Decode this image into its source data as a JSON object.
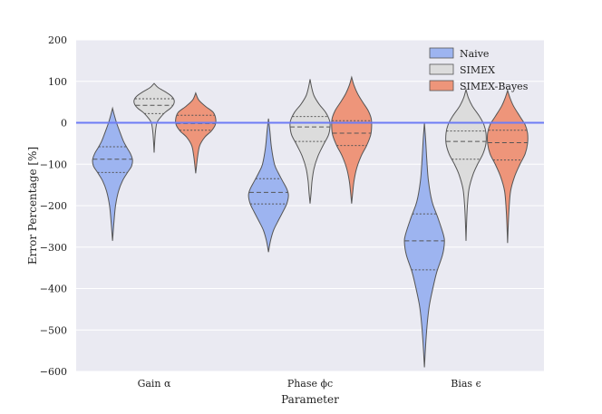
{
  "chart_data": {
    "type": "violin",
    "xlabel": "Parameter",
    "ylabel": "Error Percentage [%]",
    "ylim": [
      -600,
      200
    ],
    "yticks": [
      200,
      100,
      0,
      -100,
      -200,
      -300,
      -400,
      -500,
      -600
    ],
    "ytick_labels": [
      "200",
      "100",
      "0",
      "−100",
      "−200",
      "−300",
      "−400",
      "−500",
      "−600"
    ],
    "categories": [
      "Gain α",
      "Phase ϕc",
      "Bias ϵ"
    ],
    "reference_line": 0,
    "legend_position": "top-right",
    "series": [
      {
        "name": "Naive",
        "color": "#9db4f0",
        "violins": [
          {
            "min": -285,
            "max": 35,
            "q1": -120,
            "median": -88,
            "q3": -58,
            "profile": [
              [
                35,
                0.0
              ],
              [
                20,
                0.08
              ],
              [
                0,
                0.2
              ],
              [
                -20,
                0.35
              ],
              [
                -45,
                0.55
              ],
              [
                -60,
                0.72
              ],
              [
                -75,
                0.9
              ],
              [
                -90,
                1.0
              ],
              [
                -105,
                0.95
              ],
              [
                -120,
                0.75
              ],
              [
                -140,
                0.5
              ],
              [
                -165,
                0.3
              ],
              [
                -200,
                0.15
              ],
              [
                -240,
                0.07
              ],
              [
                -285,
                0.0
              ]
            ]
          },
          {
            "min": -312,
            "max": 10,
            "q1": -196,
            "median": -168,
            "q3": -135,
            "profile": [
              [
                10,
                0.0
              ],
              [
                -20,
                0.07
              ],
              [
                -60,
                0.15
              ],
              [
                -100,
                0.3
              ],
              [
                -120,
                0.48
              ],
              [
                -140,
                0.7
              ],
              [
                -160,
                0.92
              ],
              [
                -175,
                1.0
              ],
              [
                -195,
                0.92
              ],
              [
                -215,
                0.72
              ],
              [
                -240,
                0.45
              ],
              [
                -260,
                0.25
              ],
              [
                -285,
                0.1
              ],
              [
                -312,
                0.0
              ]
            ]
          },
          {
            "min": -590,
            "max": 0,
            "q1": -355,
            "median": -285,
            "q3": -220,
            "profile": [
              [
                0,
                0.0
              ],
              [
                -40,
                0.06
              ],
              [
                -90,
                0.12
              ],
              [
                -140,
                0.2
              ],
              [
                -190,
                0.38
              ],
              [
                -230,
                0.68
              ],
              [
                -270,
                0.95
              ],
              [
                -290,
                1.0
              ],
              [
                -320,
                0.9
              ],
              [
                -360,
                0.62
              ],
              [
                -400,
                0.42
              ],
              [
                -440,
                0.25
              ],
              [
                -480,
                0.15
              ],
              [
                -530,
                0.07
              ],
              [
                -590,
                0.0
              ]
            ]
          }
        ]
      },
      {
        "name": "SIMEX",
        "color": "#dcdcdc",
        "violins": [
          {
            "min": -72,
            "max": 95,
            "q1": 22,
            "median": 42,
            "q3": 58,
            "profile": [
              [
                95,
                0.0
              ],
              [
                85,
                0.2
              ],
              [
                75,
                0.55
              ],
              [
                65,
                0.85
              ],
              [
                55,
                1.0
              ],
              [
                45,
                0.98
              ],
              [
                35,
                0.82
              ],
              [
                25,
                0.55
              ],
              [
                12,
                0.3
              ],
              [
                0,
                0.14
              ],
              [
                -20,
                0.07
              ],
              [
                -45,
                0.03
              ],
              [
                -72,
                0.0
              ]
            ]
          },
          {
            "min": -195,
            "max": 105,
            "q1": -45,
            "median": -10,
            "q3": 15,
            "profile": [
              [
                105,
                0.0
              ],
              [
                85,
                0.08
              ],
              [
                65,
                0.2
              ],
              [
                45,
                0.45
              ],
              [
                25,
                0.78
              ],
              [
                5,
                0.98
              ],
              [
                -10,
                1.0
              ],
              [
                -30,
                0.92
              ],
              [
                -55,
                0.65
              ],
              [
                -80,
                0.4
              ],
              [
                -110,
                0.2
              ],
              [
                -140,
                0.1
              ],
              [
                -170,
                0.05
              ],
              [
                -195,
                0.0
              ]
            ]
          },
          {
            "min": -285,
            "max": 80,
            "q1": -88,
            "median": -45,
            "q3": -20,
            "profile": [
              [
                80,
                0.0
              ],
              [
                60,
                0.12
              ],
              [
                40,
                0.32
              ],
              [
                15,
                0.68
              ],
              [
                -5,
                0.9
              ],
              [
                -25,
                1.0
              ],
              [
                -50,
                1.0
              ],
              [
                -75,
                0.85
              ],
              [
                -100,
                0.58
              ],
              [
                -125,
                0.35
              ],
              [
                -160,
                0.15
              ],
              [
                -200,
                0.07
              ],
              [
                -240,
                0.03
              ],
              [
                -285,
                0.0
              ]
            ]
          }
        ]
      },
      {
        "name": "SIMEX-Bayes",
        "color": "#ee957a",
        "violins": [
          {
            "min": -122,
            "max": 72,
            "q1": -18,
            "median": -2,
            "q3": 18,
            "profile": [
              [
                72,
                0.0
              ],
              [
                55,
                0.15
              ],
              [
                40,
                0.48
              ],
              [
                25,
                0.88
              ],
              [
                10,
                1.0
              ],
              [
                -5,
                0.98
              ],
              [
                -20,
                0.78
              ],
              [
                -35,
                0.45
              ],
              [
                -55,
                0.2
              ],
              [
                -80,
                0.1
              ],
              [
                -100,
                0.05
              ],
              [
                -122,
                0.0
              ]
            ]
          },
          {
            "min": -195,
            "max": 110,
            "q1": -55,
            "median": -25,
            "q3": 5,
            "profile": [
              [
                110,
                0.0
              ],
              [
                90,
                0.12
              ],
              [
                70,
                0.3
              ],
              [
                50,
                0.55
              ],
              [
                30,
                0.82
              ],
              [
                10,
                0.98
              ],
              [
                -10,
                1.0
              ],
              [
                -30,
                0.95
              ],
              [
                -55,
                0.75
              ],
              [
                -80,
                0.48
              ],
              [
                -110,
                0.25
              ],
              [
                -140,
                0.12
              ],
              [
                -170,
                0.05
              ],
              [
                -195,
                0.0
              ]
            ]
          },
          {
            "min": -290,
            "max": 78,
            "q1": -90,
            "median": -48,
            "q3": -18,
            "profile": [
              [
                78,
                0.0
              ],
              [
                60,
                0.12
              ],
              [
                40,
                0.3
              ],
              [
                15,
                0.62
              ],
              [
                -5,
                0.88
              ],
              [
                -25,
                1.0
              ],
              [
                -50,
                1.0
              ],
              [
                -75,
                0.88
              ],
              [
                -100,
                0.62
              ],
              [
                -130,
                0.35
              ],
              [
                -165,
                0.15
              ],
              [
                -210,
                0.07
              ],
              [
                -250,
                0.03
              ],
              [
                -290,
                0.0
              ]
            ]
          }
        ]
      }
    ]
  },
  "colors": {
    "plot_background": "#eaeaf2",
    "grid": "#ffffff",
    "reference_line": "#6d7cf5",
    "violin_edge": "#555555"
  }
}
